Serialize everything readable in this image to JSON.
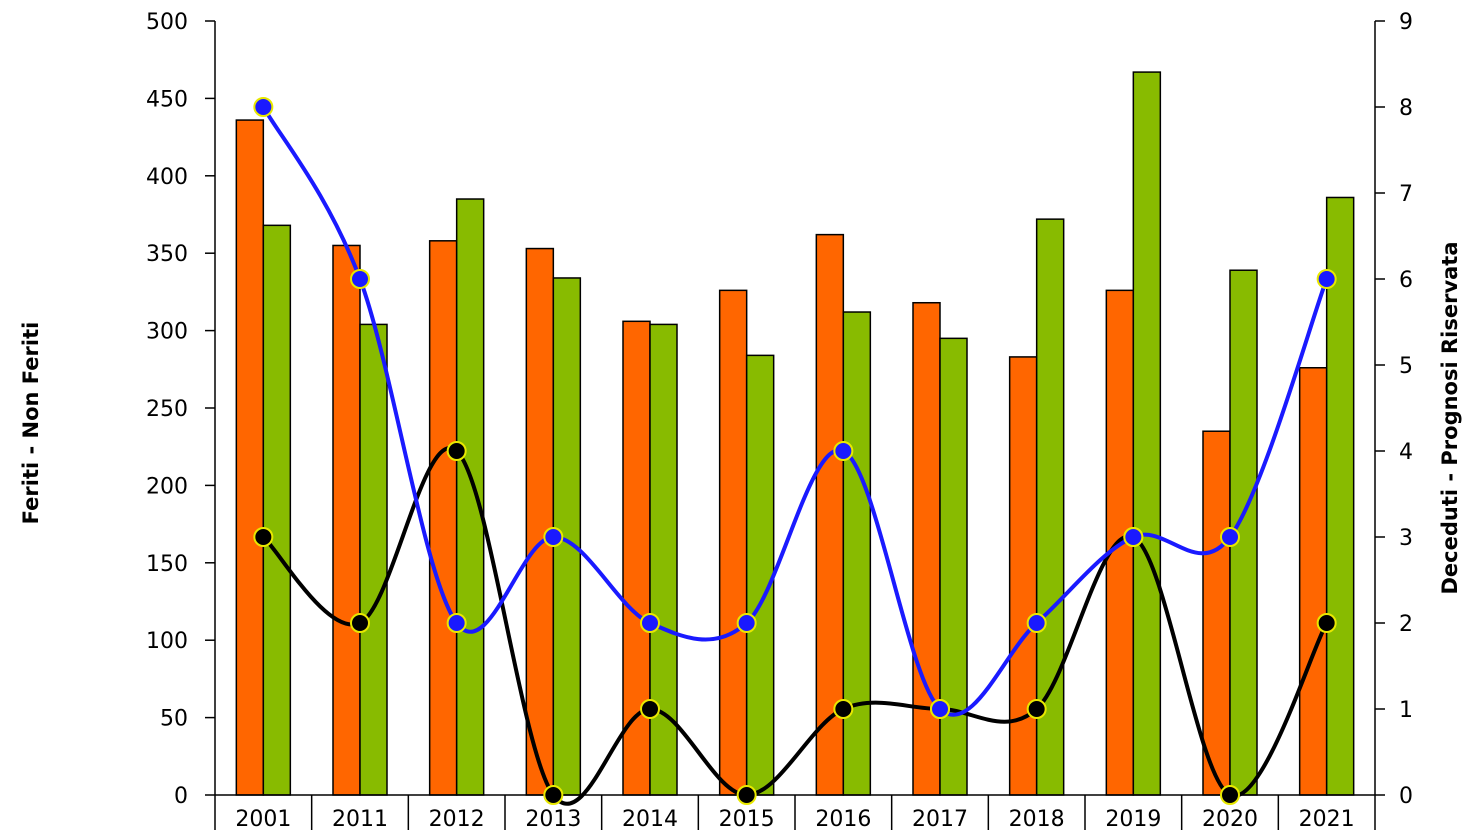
{
  "chart_data": {
    "type": "bar",
    "categories": [
      "2001",
      "2011",
      "2012",
      "2013",
      "2014",
      "2015",
      "2016",
      "2017",
      "2018",
      "2019",
      "2020",
      "2021"
    ],
    "ylabel": "Feriti - Non Feriti",
    "y2label": "Deceduti - Prognosi Riservata",
    "ylim": [
      0,
      500
    ],
    "y2lim": [
      0,
      9
    ],
    "yticks": [
      0,
      50,
      100,
      150,
      200,
      250,
      300,
      350,
      400,
      450,
      500
    ],
    "y2ticks": [
      0,
      1,
      2,
      3,
      4,
      5,
      6,
      7,
      8,
      9
    ],
    "grid": false,
    "legend": "none",
    "bar_series": [
      {
        "color": "#ff6600",
        "values": [
          436,
          355,
          358,
          353,
          306,
          326,
          362,
          318,
          283,
          326,
          235,
          276
        ]
      },
      {
        "color": "#88bb00",
        "values": [
          368,
          304,
          385,
          334,
          304,
          284,
          312,
          295,
          372,
          467,
          339,
          386
        ]
      }
    ],
    "line_series": [
      {
        "color": "#1a1aff",
        "marker_color": "#1a1aff",
        "axis": "right",
        "values": [
          8,
          6,
          2,
          3,
          2,
          2,
          4,
          1,
          2,
          3,
          3,
          6
        ]
      },
      {
        "color": "#000000",
        "marker_color": "#000000",
        "axis": "right",
        "values": [
          3,
          2,
          4,
          0,
          1,
          0,
          1,
          1,
          1,
          3,
          0,
          2
        ]
      }
    ],
    "marker_outline": "#e8e800"
  }
}
